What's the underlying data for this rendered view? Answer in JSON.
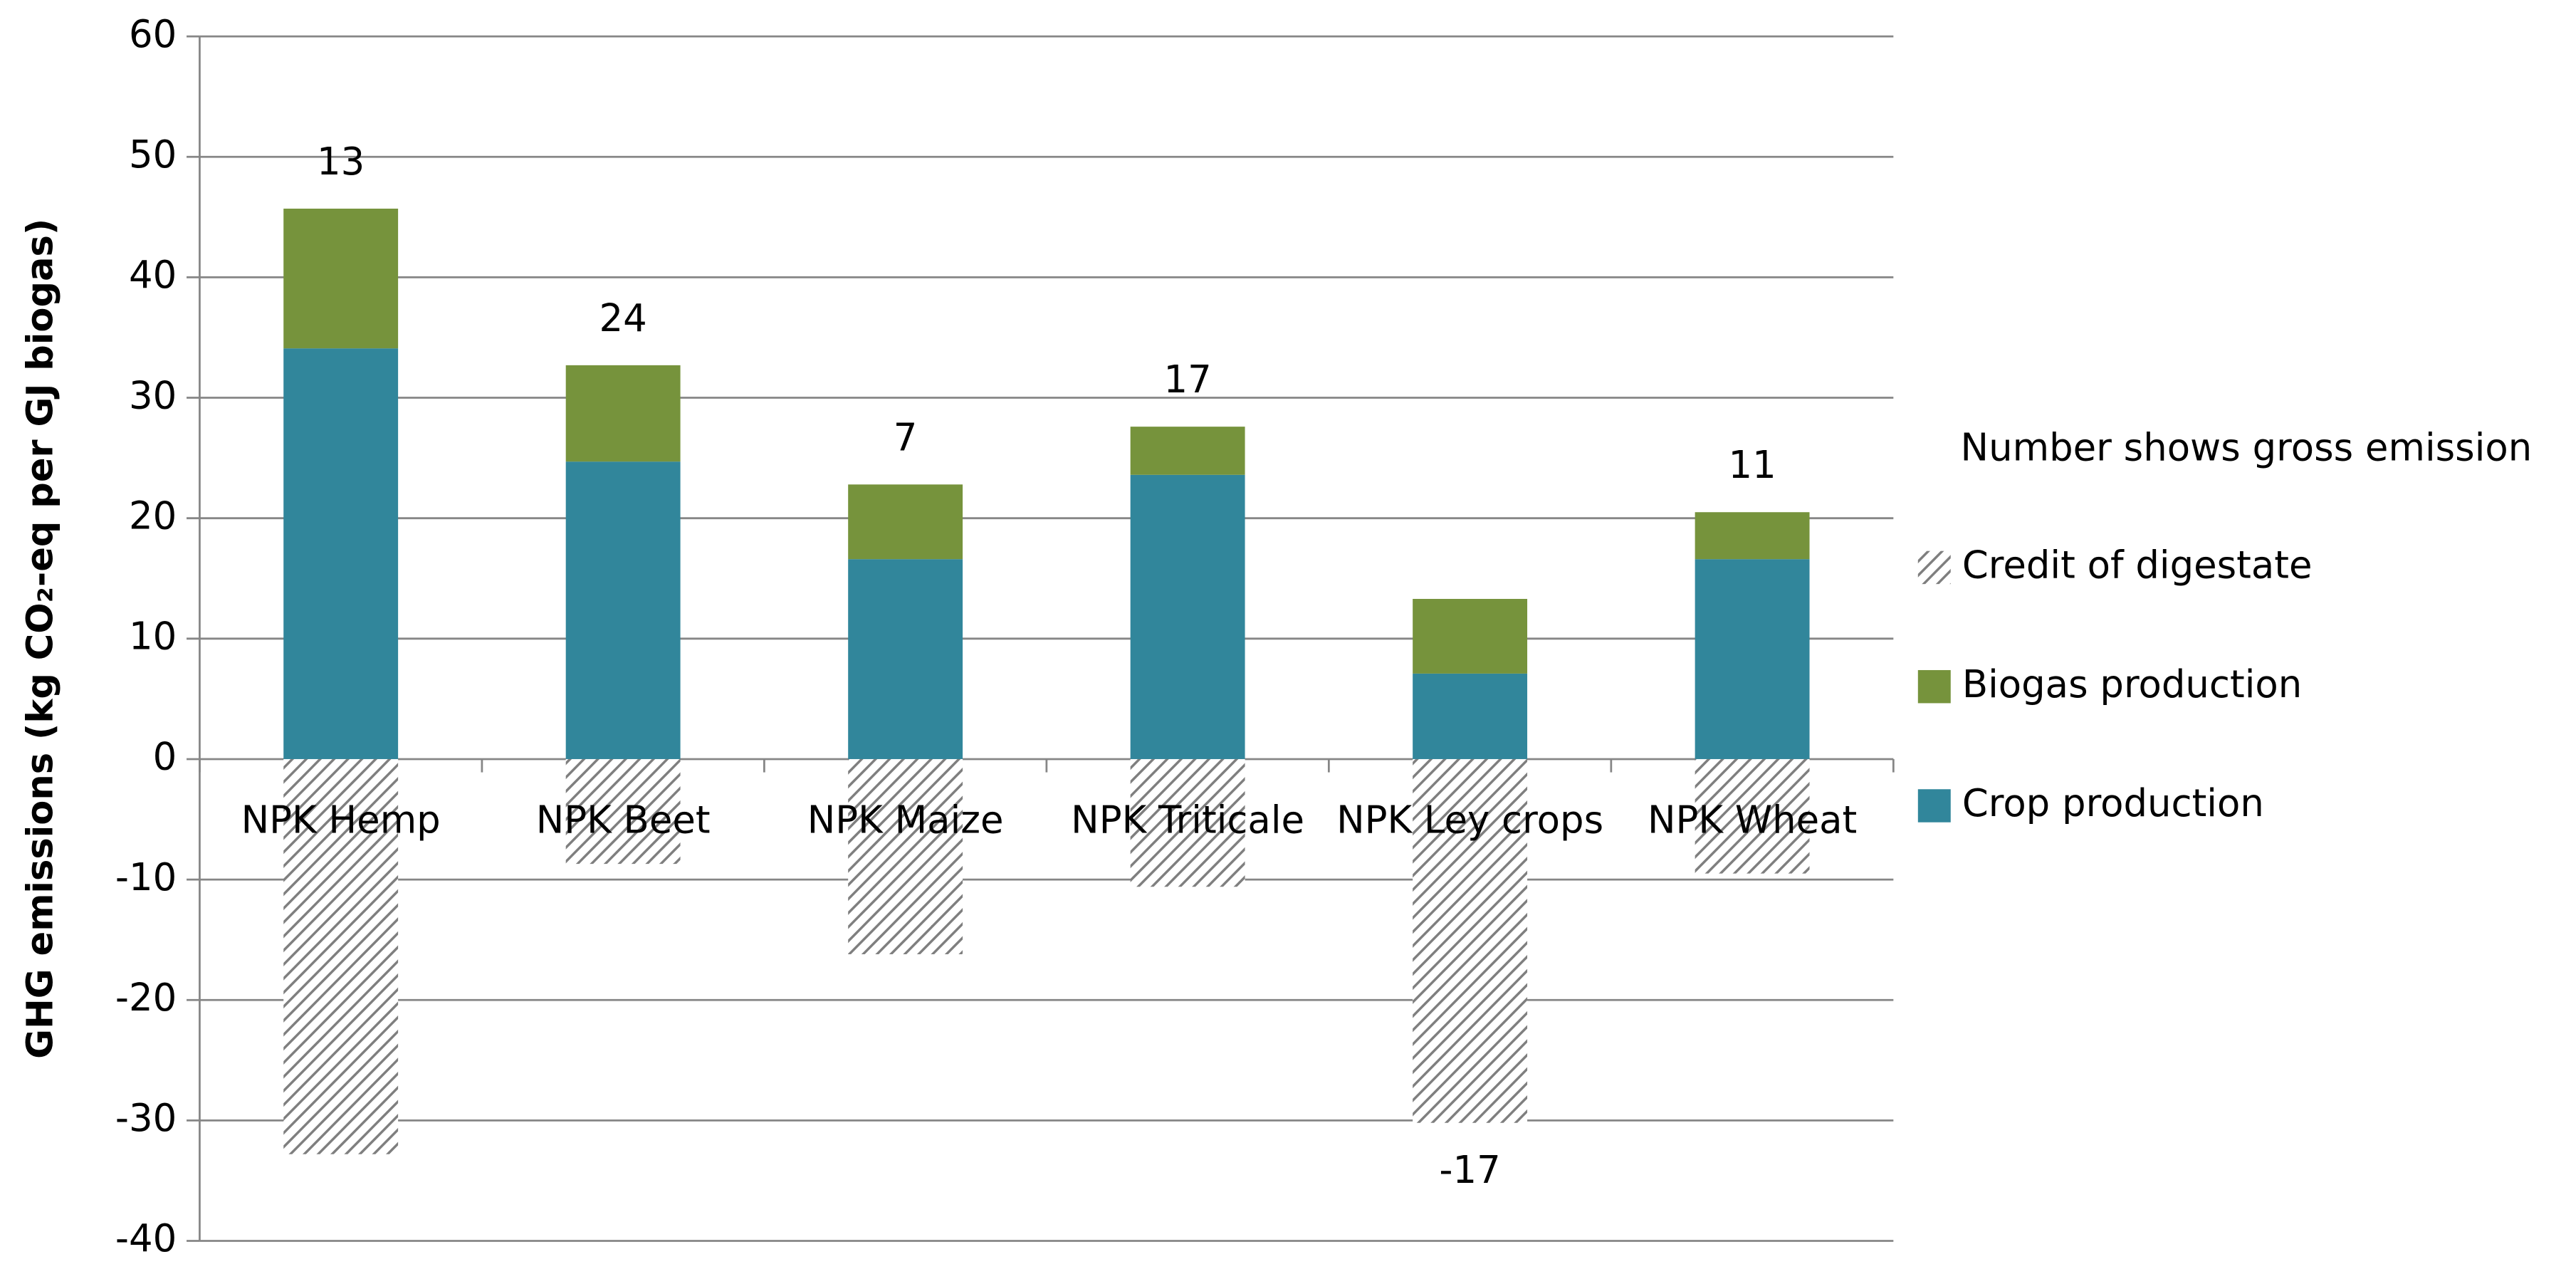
{
  "chart_data": {
    "type": "bar",
    "stacked": true,
    "y_label": "GHG emissions (kg CO₂-eq per GJ biogas)",
    "categories": [
      "NPK Hemp",
      "NPK Beet",
      "NPK Maize",
      "NPK Triticale",
      "NPK Ley crops",
      "NPK Wheat"
    ],
    "series": [
      {
        "name": "Crop production",
        "color": "#31869b",
        "values": [
          34.1,
          24.7,
          16.6,
          23.6,
          7.1,
          16.6
        ]
      },
      {
        "name": "Biogas production",
        "color": "#76933c",
        "values": [
          11.6,
          8.0,
          6.2,
          4.0,
          6.2,
          3.9
        ]
      },
      {
        "name": "Credit of digestate",
        "color": "#7f7f7f",
        "pattern": "hatch",
        "values": [
          -32.8,
          -8.7,
          -16.2,
          -10.6,
          -30.2,
          -9.5
        ]
      }
    ],
    "bar_labels": [
      13,
      24,
      7,
      17,
      -17,
      11
    ],
    "legend_title": "Number shows gross emission",
    "legend": "right",
    "ylim": [
      -40,
      60
    ],
    "yticks": [
      -40,
      -30,
      -20,
      -10,
      0,
      10,
      20,
      30,
      40,
      50,
      60
    ],
    "grid": true
  }
}
